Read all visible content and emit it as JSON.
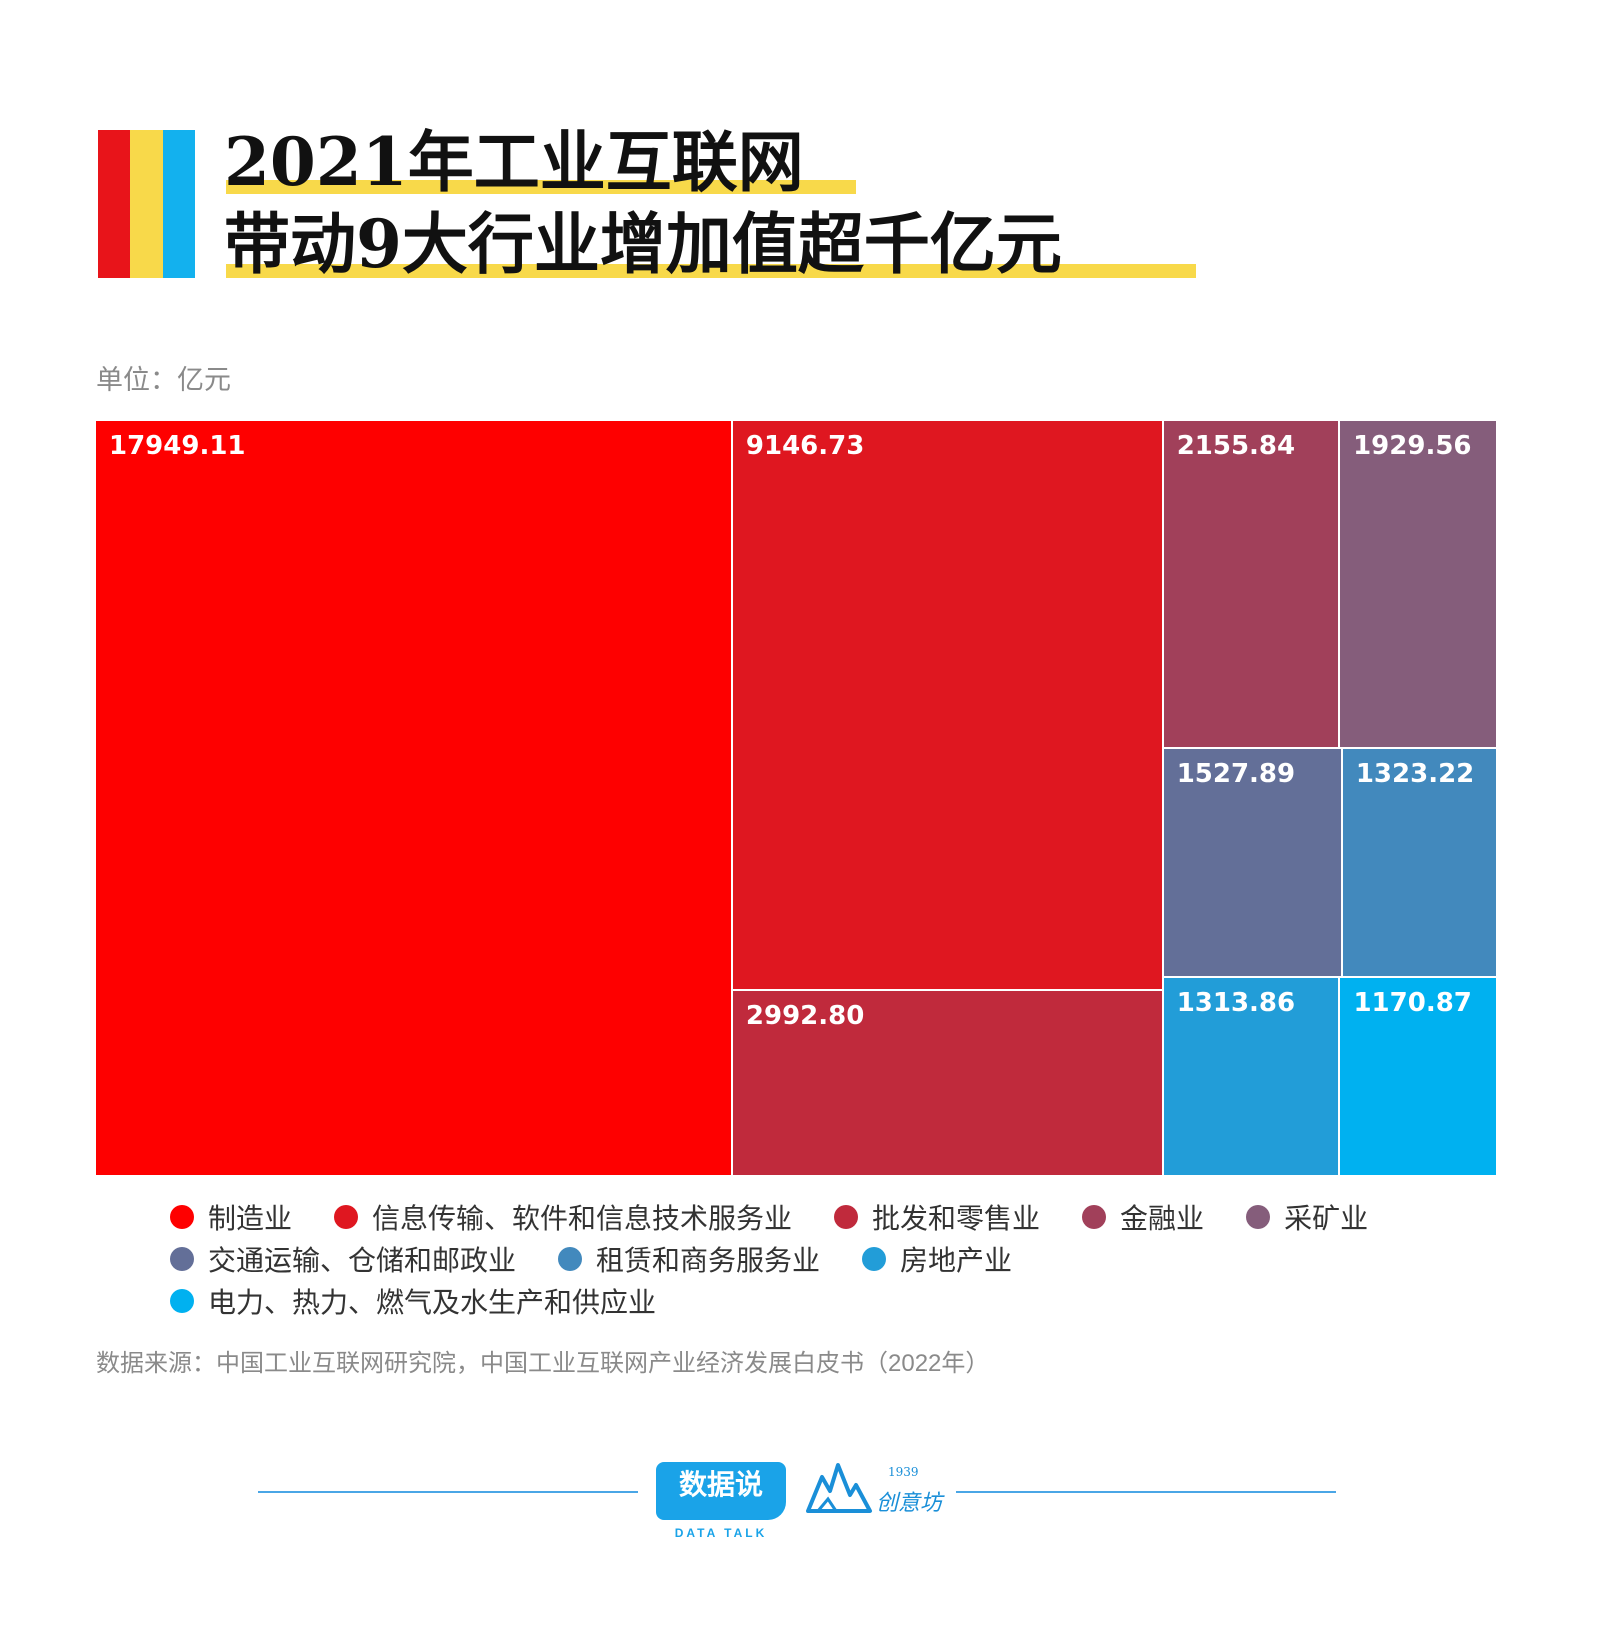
{
  "title": {
    "line1": "2021年工业互联网",
    "line2": "带动9大行业增加值超千亿元",
    "bar_colors": [
      "#e8141a",
      "#f8d94a",
      "#13b1ee"
    ],
    "highlight_color": "#f8d94a"
  },
  "unit_label": "单位：亿元",
  "chart_data": {
    "type": "treemap",
    "unit": "亿元",
    "items": [
      {
        "name": "制造业",
        "value": 17949.11,
        "label": "17949.11",
        "color": "#fe0000"
      },
      {
        "name": "信息传输、软件和信息技术服务业",
        "value": 9146.73,
        "label": "9146.73",
        "color": "#df1720"
      },
      {
        "name": "批发和零售业",
        "value": 2992.8,
        "label": "2992.80",
        "color": "#c02a3c"
      },
      {
        "name": "金融业",
        "value": 2155.84,
        "label": "2155.84",
        "color": "#a1405a"
      },
      {
        "name": "采矿业",
        "value": 1929.56,
        "label": "1929.56",
        "color": "#855d7b"
      },
      {
        "name": "交通运输、仓储和邮政业",
        "value": 1527.89,
        "label": "1527.89",
        "color": "#636f98"
      },
      {
        "name": "租赁和商务服务业",
        "value": 1323.22,
        "label": "1323.22",
        "color": "#4289bd"
      },
      {
        "name": "房地产业",
        "value": 1313.86,
        "label": "1313.86",
        "color": "#229dd8"
      },
      {
        "name": "电力、热力、燃气及水生产和供应业",
        "value": 1170.87,
        "label": "1170.87",
        "color": "#00b1f0"
      }
    ]
  },
  "legend": {
    "rows": [
      [
        {
          "label": "制造业",
          "color": "#fe0000"
        },
        {
          "label": "信息传输、软件和信息技术服务业",
          "color": "#df1720"
        },
        {
          "label": "批发和零售业",
          "color": "#c02a3c"
        },
        {
          "label": "金融业",
          "color": "#a1405a"
        },
        {
          "label": "采矿业",
          "color": "#855d7b"
        }
      ],
      [
        {
          "label": "交通运输、仓储和邮政业",
          "color": "#636f98"
        },
        {
          "label": "租赁和商务服务业",
          "color": "#4289bd"
        },
        {
          "label": "房地产业",
          "color": "#229dd8"
        }
      ],
      [
        {
          "label": "电力、热力、燃气及水生产和供应业",
          "color": "#00b1f0"
        }
      ]
    ]
  },
  "source": "数据来源：中国工业互联网研究院，中国工业互联网产业经济发展白皮书（2022年）",
  "footer": {
    "logo1_text": "数据说",
    "logo1_sub": "DATA TALK",
    "logo2_text": "创意坊",
    "logo2_year": "1939"
  }
}
